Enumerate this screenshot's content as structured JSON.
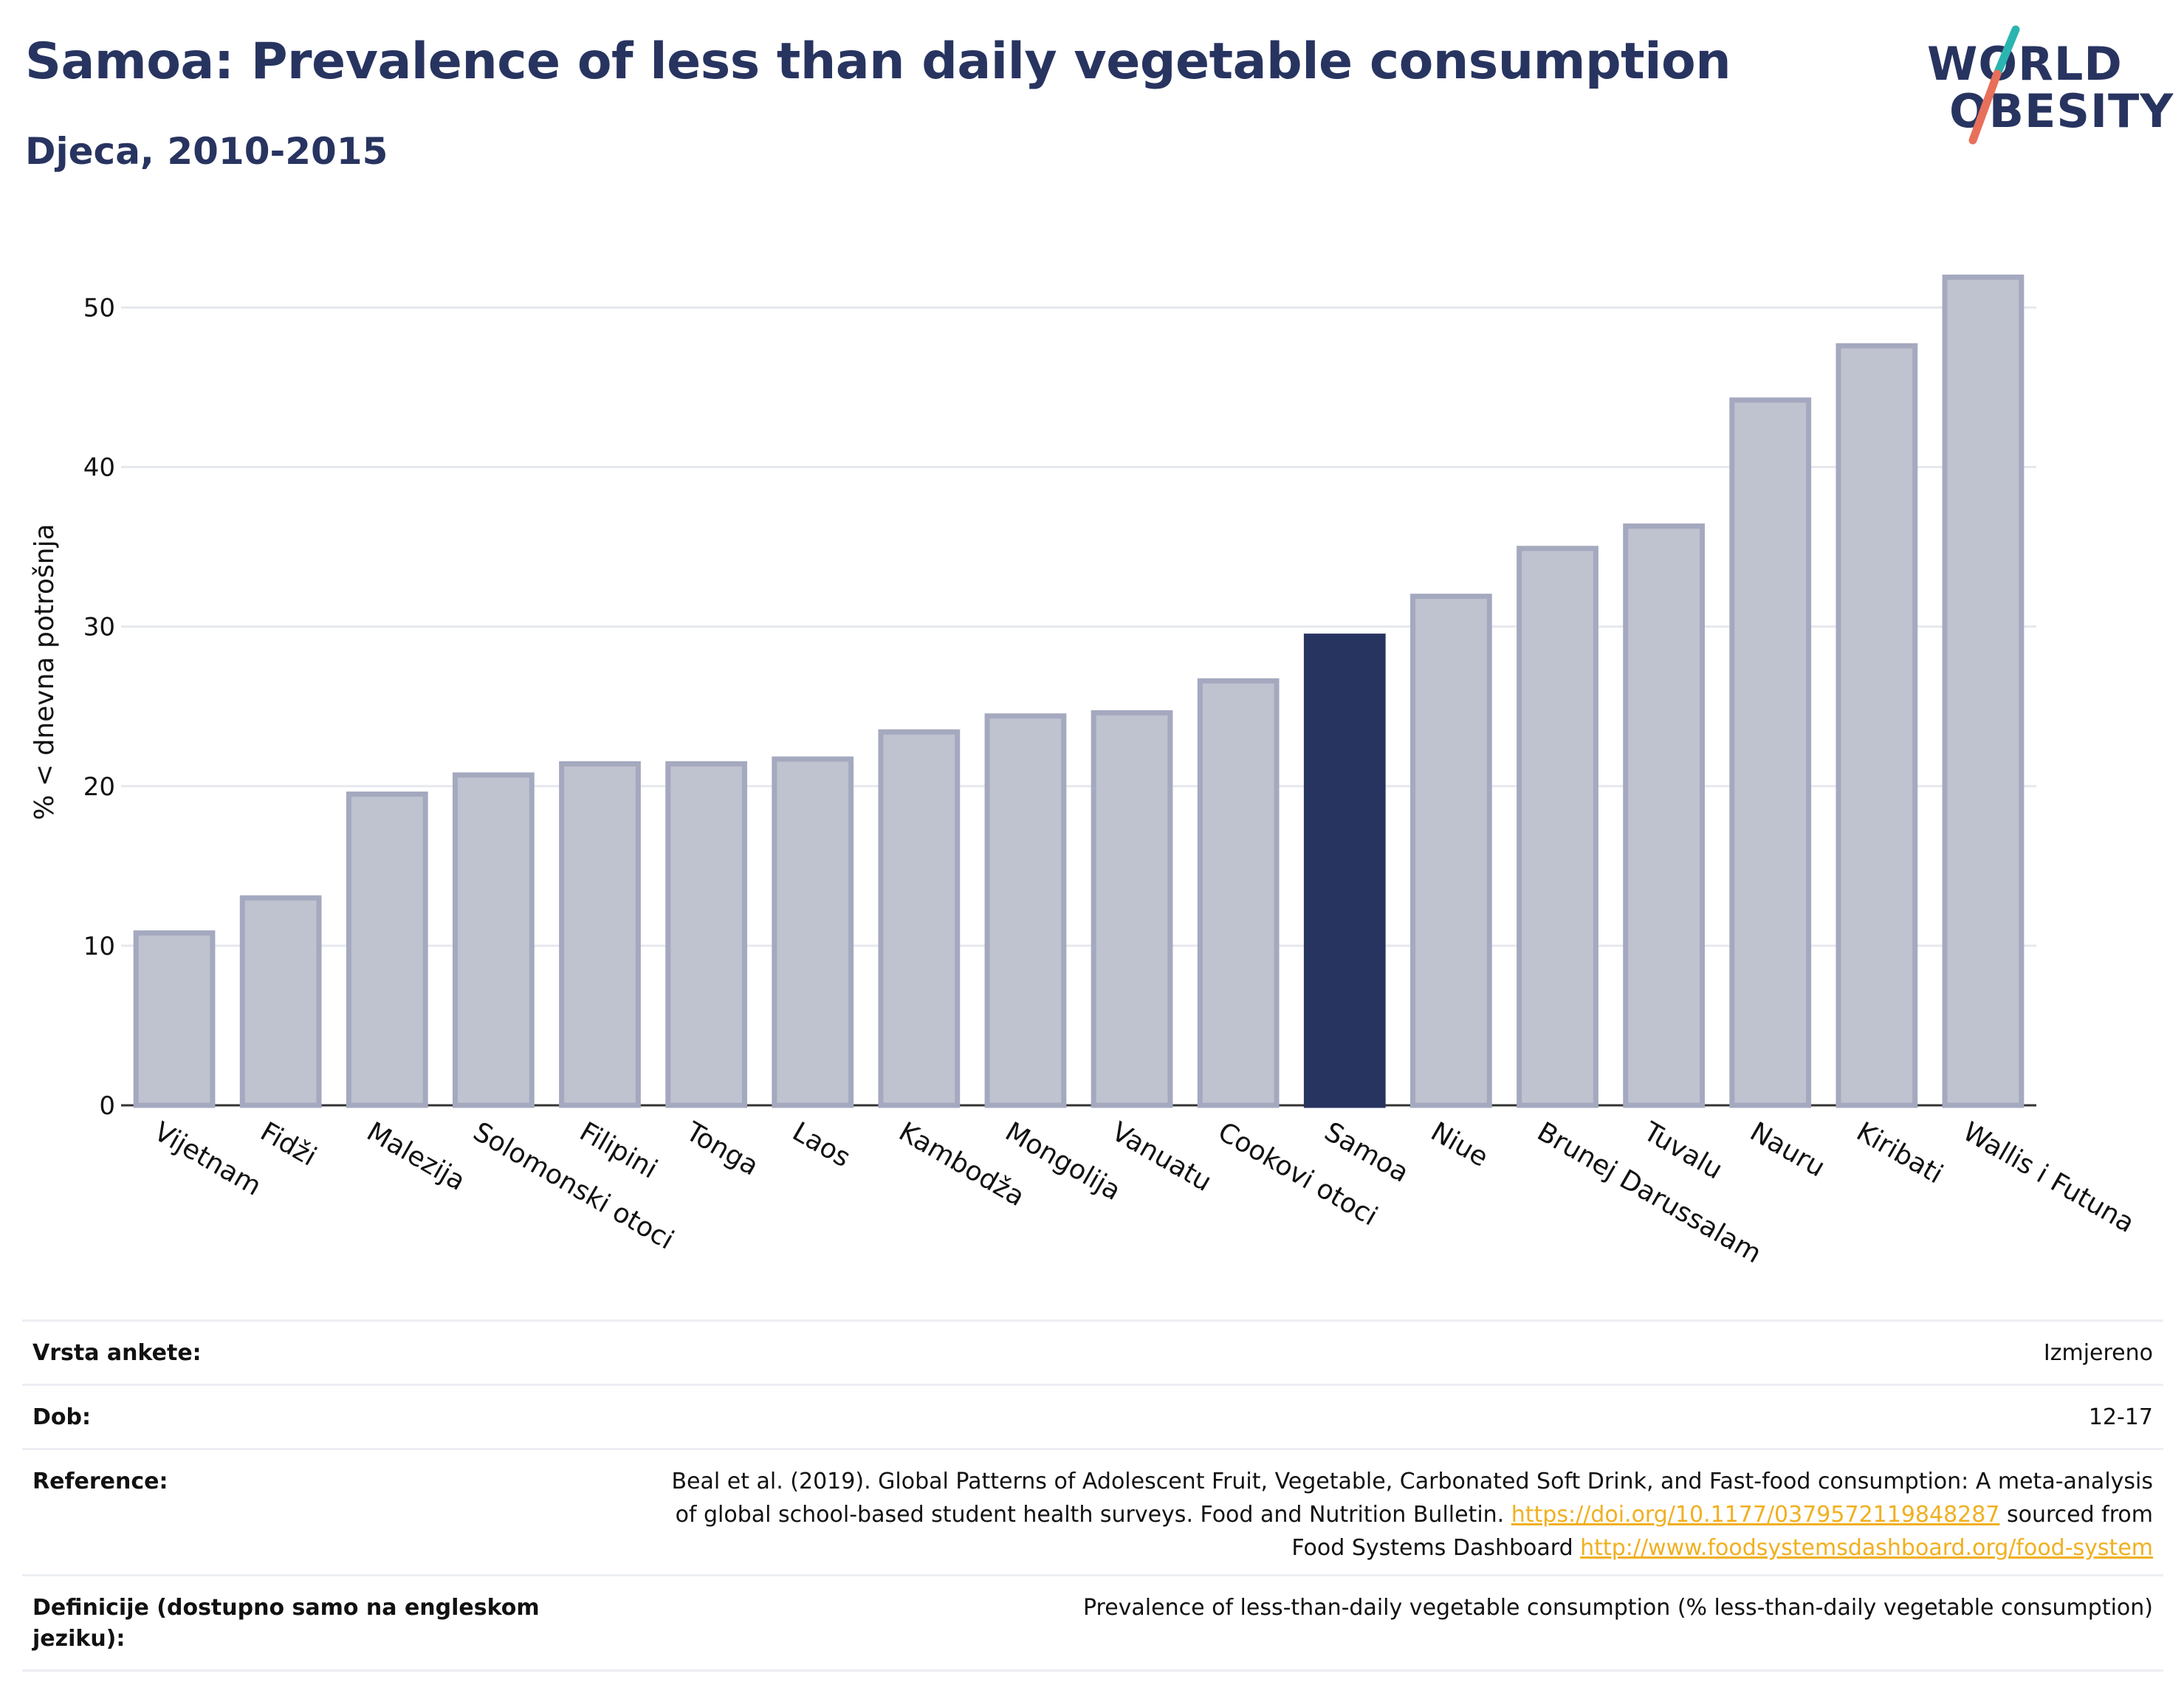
{
  "title": "Samoa: Prevalence of less than daily vegetable consumption",
  "subtitle": "Djeca, 2010-2015",
  "logo": {
    "line1": "WORLD",
    "line2": "OBESITY"
  },
  "colors": {
    "highlight": "#283460",
    "bar_fill": "#bfc2cf",
    "bar_stroke": "#a4a9bf",
    "grid": "#e6e8ee",
    "link": "#f0b020"
  },
  "chart_data": {
    "type": "bar",
    "categories": [
      "Vijetnam",
      "Fidži",
      "Malezija",
      "Solomonski otoci",
      "Filipini",
      "Tonga",
      "Laos",
      "Kambodža",
      "Mongolija",
      "Vanuatu",
      "Cookovi otoci",
      "Samoa",
      "Niue",
      "Brunej Darussalam",
      "Tuvalu",
      "Nauru",
      "Kiribati",
      "Wallis i Futuna"
    ],
    "values": [
      10.8,
      13.0,
      19.5,
      20.7,
      21.4,
      21.4,
      21.7,
      23.4,
      24.4,
      24.6,
      26.6,
      29.4,
      31.9,
      34.9,
      36.3,
      44.2,
      47.6,
      51.9
    ],
    "highlight": "Samoa",
    "ylabel": "% < dnevna potrošnja",
    "xlabel": "",
    "ylim": [
      0,
      54
    ],
    "yticks": [
      0,
      10,
      20,
      30,
      40,
      50
    ],
    "grid": true
  },
  "meta": [
    {
      "label": "Vrsta ankete:",
      "value": "Izmjereno"
    },
    {
      "label": "Dob:",
      "value": "12-17"
    },
    {
      "label": "Reference:",
      "value_lines": [
        {
          "text": "Beal et al. (2019). Global Patterns of Adolescent Fruit, Vegetable, Carbonated Soft Drink, and Fast-food consumption: A meta-analysis"
        },
        {
          "text": "of global school-based student health surveys. Food and Nutrition Bulletin. ",
          "link": "https://doi.org/10.1177/0379572119848287",
          "after": " sourced from"
        },
        {
          "text": "Food Systems Dashboard ",
          "link": "http://www.foodsystemsdashboard.org/food-system"
        }
      ]
    },
    {
      "label": "Definicije (dostupno samo na engleskom jeziku):",
      "value": "Prevalence of less-than-daily vegetable consumption (% less-than-daily vegetable consumption)"
    }
  ]
}
